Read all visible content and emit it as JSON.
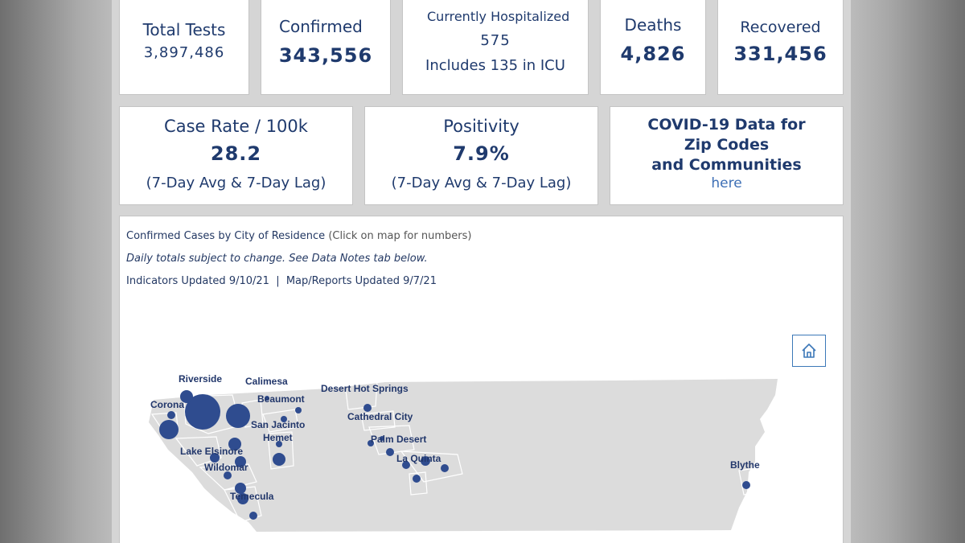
{
  "stats": {
    "total_tests": {
      "label": "Total Tests",
      "value": "3,897,486"
    },
    "confirmed": {
      "label": "Confirmed",
      "value": "343,556"
    },
    "hospitalized": {
      "label": "Currently Hospitalized",
      "value": "575",
      "note": "Includes 135 in ICU"
    },
    "deaths": {
      "label": "Deaths",
      "value": "4,826"
    },
    "recovered": {
      "label": "Recovered",
      "value": "331,456"
    }
  },
  "rates": {
    "case_rate": {
      "label": "Case Rate / 100k",
      "value": "28.2",
      "note": "(7-Day Avg & 7-Day Lag)"
    },
    "positivity": {
      "label": "Positivity",
      "value": "7.9%",
      "note": "(7-Day Avg & 7-Day Lag)"
    }
  },
  "zip_card": {
    "line1": "COVID-19 Data for",
    "line2": "Zip Codes",
    "line3": "and Communities",
    "link": "here"
  },
  "map": {
    "title": "Confirmed Cases by City of Residence",
    "title_hint": "(Click on map for numbers)",
    "disclaimer": "Daily totals subject to change. See Data Notes tab below.",
    "updated": "Indicators Updated 9/10/21  |  Map/Reports Updated 9/7/21",
    "home_button_icon": "home-icon",
    "colors": {
      "bubble": "#2f4c8f",
      "land": "#dcdcdc"
    },
    "cities": [
      "Riverside",
      "Calimesa",
      "Desert Hot Springs",
      "Corona",
      "Beaumont",
      "Cathedral City",
      "San Jacinto",
      "Hemet",
      "Palm Desert",
      "Lake Elsinore",
      "La Quinta",
      "Wildomar",
      "Blythe",
      "Temecula"
    ]
  }
}
